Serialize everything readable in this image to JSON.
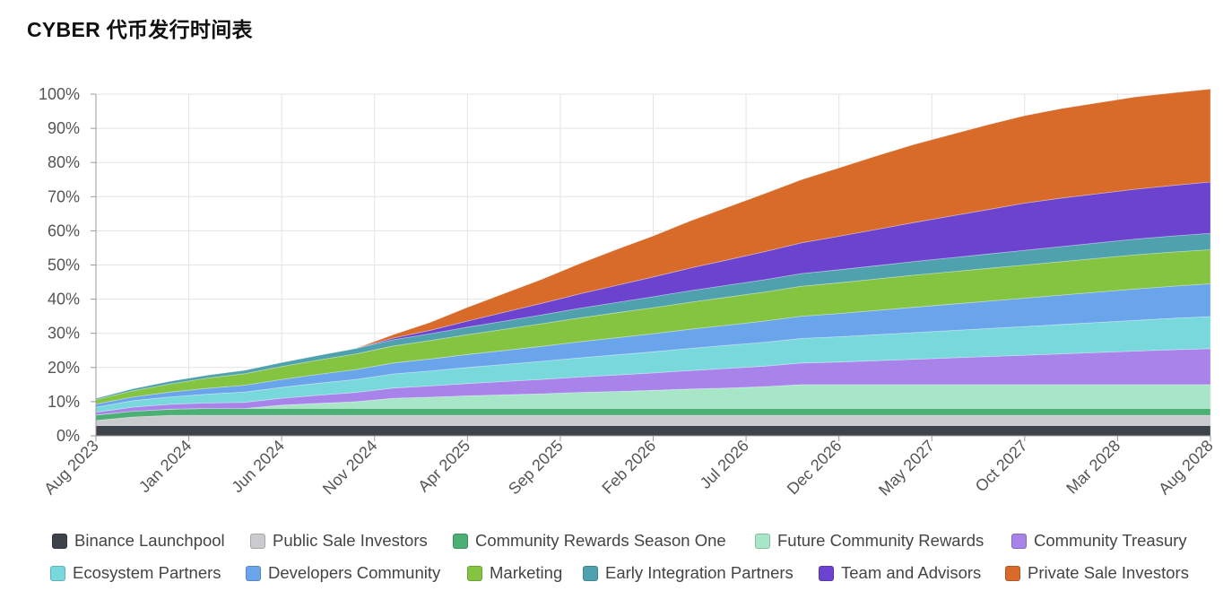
{
  "title": "CYBER 代币发行时间表",
  "chart_data": {
    "type": "area",
    "stacked": true,
    "title": "CYBER 代币发行时间表",
    "xlabel": "",
    "ylabel": "",
    "ylim": [
      0,
      100
    ],
    "y_ticks": [
      "0%",
      "10%",
      "20%",
      "30%",
      "40%",
      "50%",
      "60%",
      "70%",
      "80%",
      "90%",
      "100%"
    ],
    "x_tick_labels": [
      "Aug 2023",
      "Jan 2024",
      "Jun 2024",
      "Nov 2024",
      "Apr 2025",
      "Sep 2025",
      "Feb 2026",
      "Jul 2026",
      "Dec 2026",
      "May 2027",
      "Oct 2027",
      "Mar 2028",
      "Aug 2028"
    ],
    "x_months": [
      0,
      2,
      4,
      6,
      8,
      10,
      12,
      14,
      16,
      18,
      20,
      22,
      24,
      26,
      28,
      30,
      32,
      34,
      36,
      38,
      40,
      42,
      44,
      46,
      48,
      50,
      52,
      54,
      56,
      58,
      60
    ],
    "series": [
      {
        "name": "Binance Launchpool",
        "color": "#3e424a",
        "values": [
          3,
          3,
          3,
          3,
          3,
          3,
          3,
          3,
          3,
          3,
          3,
          3,
          3,
          3,
          3,
          3,
          3,
          3,
          3,
          3,
          3,
          3,
          3,
          3,
          3,
          3,
          3,
          3,
          3,
          3,
          3
        ]
      },
      {
        "name": "Public Sale Investors",
        "color": "#c9cbcf",
        "values": [
          1.5,
          2.5,
          3,
          3,
          3,
          3,
          3,
          3,
          3,
          3,
          3,
          3,
          3,
          3,
          3,
          3,
          3,
          3,
          3,
          3,
          3,
          3,
          3,
          3,
          3,
          3,
          3,
          3,
          3,
          3,
          3
        ]
      },
      {
        "name": "Community Rewards Season One",
        "color": "#4caf73",
        "values": [
          1.6,
          1.7,
          1.8,
          2,
          2,
          2,
          2,
          2,
          2,
          2,
          2,
          2,
          2,
          2,
          2,
          2,
          2,
          2,
          2,
          2,
          2,
          2,
          2,
          2,
          2,
          2,
          2,
          2,
          2,
          2,
          2
        ]
      },
      {
        "name": "Future Community Rewards",
        "color": "#a8e6c8",
        "values": [
          0,
          0,
          0,
          0,
          0,
          1,
          1.5,
          2,
          3,
          3.3,
          3.7,
          4,
          4.3,
          4.7,
          5,
          5.3,
          5.7,
          6,
          6.4,
          7,
          7,
          7,
          7,
          7,
          7,
          7,
          7,
          7,
          7,
          7,
          7
        ]
      },
      {
        "name": "Community Treasury",
        "color": "#a783ea",
        "values": [
          0.8,
          1.2,
          1.4,
          1.6,
          1.8,
          2,
          2.4,
          2.7,
          3,
          3.3,
          3.6,
          3.9,
          4.2,
          4.5,
          4.8,
          5.1,
          5.4,
          5.7,
          6,
          6.3,
          6.6,
          7,
          7.4,
          7.8,
          8.2,
          8.6,
          9,
          9.4,
          9.8,
          10.2,
          10.5
        ]
      },
      {
        "name": "Ecosystem Partners",
        "color": "#79d8dc",
        "values": [
          1.5,
          1.9,
          2.2,
          2.6,
          3,
          3.2,
          3.5,
          3.8,
          4.1,
          4.4,
          4.7,
          5,
          5.3,
          5.6,
          5.9,
          6.2,
          6.5,
          6.8,
          7,
          7.2,
          7.4,
          7.6,
          7.8,
          8,
          8.2,
          8.4,
          8.6,
          8.8,
          9,
          9.2,
          9.4
        ]
      },
      {
        "name": "Developers Community",
        "color": "#6aa5eb",
        "values": [
          0.9,
          1.1,
          1.4,
          1.7,
          2,
          2.3,
          2.6,
          2.9,
          3.2,
          3.5,
          3.8,
          4.1,
          4.4,
          4.7,
          5,
          5.3,
          5.6,
          5.9,
          6.2,
          6.5,
          6.8,
          7.1,
          7.4,
          7.7,
          8,
          8.3,
          8.6,
          8.9,
          9.2,
          9.4,
          9.6
        ]
      },
      {
        "name": "Marketing",
        "color": "#84c441",
        "values": [
          1.3,
          1.8,
          2.4,
          3,
          3.4,
          3.8,
          4.2,
          4.6,
          5,
          5.4,
          5.8,
          6.2,
          6.6,
          7,
          7.3,
          7.6,
          7.9,
          8.2,
          8.5,
          8.8,
          9,
          9.2,
          9.4,
          9.5,
          9.6,
          9.7,
          9.8,
          9.9,
          10,
          10,
          10
        ]
      },
      {
        "name": "Early Integration Partners",
        "color": "#4fa1ad",
        "values": [
          0.4,
          0.6,
          0.8,
          0.9,
          1,
          1.2,
          1.4,
          1.6,
          1.8,
          2,
          2.2,
          2.4,
          2.6,
          2.8,
          3,
          3.2,
          3.4,
          3.5,
          3.6,
          3.7,
          3.8,
          3.9,
          4,
          4.1,
          4.2,
          4.3,
          4.4,
          4.5,
          4.6,
          4.7,
          4.8
        ]
      },
      {
        "name": "Team and Advisors",
        "color": "#6c43cf",
        "values": [
          0,
          0,
          0,
          0,
          0,
          0,
          0,
          0,
          0.5,
          1,
          1.8,
          2.6,
          3.4,
          4.2,
          5,
          5.8,
          6.6,
          7.4,
          8.2,
          9,
          9.8,
          10.6,
          11.4,
          12.2,
          13,
          13.8,
          14.2,
          14.4,
          14.6,
          14.8,
          15
        ]
      },
      {
        "name": "Private Sale Investors",
        "color": "#d86a2a",
        "values": [
          0,
          0,
          0,
          0,
          0,
          0,
          0,
          0,
          1,
          2.3,
          4,
          5.5,
          7,
          8.8,
          10.5,
          12,
          13.8,
          15.4,
          17,
          18.5,
          20,
          21.5,
          22.8,
          23.8,
          24.8,
          25.6,
          26.2,
          26.6,
          27,
          27.1,
          27.2
        ]
      }
    ]
  }
}
